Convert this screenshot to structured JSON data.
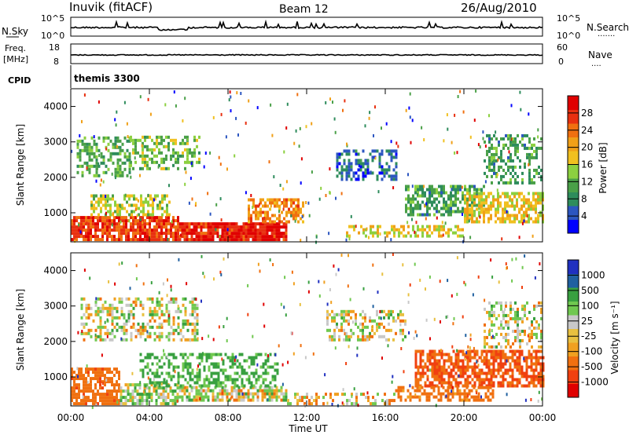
{
  "header": {
    "station": "Inuvik (fitACF)",
    "beam": "Beam 12",
    "date": "26/Aug/2010"
  },
  "noise_panel": {
    "left_label": "N.Sky",
    "right_label": "N.Search",
    "left_ticks": [
      "10^5",
      "10^0"
    ],
    "right_ticks": [
      "10^5",
      "10^0"
    ]
  },
  "freq_panel": {
    "left_label_line1": "Freq.",
    "left_label_line2": "[MHz]",
    "right_label": "Nave",
    "left_ticks": [
      "18",
      "8"
    ],
    "right_ticks": [
      "60",
      "0"
    ]
  },
  "cpid_panel": {
    "label": "CPID",
    "value": "themis 3300"
  },
  "x_axis": {
    "label": "Time UT",
    "ticks": [
      "00:00",
      "04:00",
      "08:00",
      "12:00",
      "16:00",
      "20:00",
      "00:00"
    ]
  },
  "colors": {
    "power": [
      "#0000ff",
      "#2c56c0",
      "#2e8c5c",
      "#4aa048",
      "#8cd040",
      "#f0c020",
      "#f0a018",
      "#f07010",
      "#e83010",
      "#e00000"
    ],
    "velocity": [
      "#e00000",
      "#f04010",
      "#f07010",
      "#f0a020",
      "#e8c040",
      "#c8c8c8",
      "#70c850",
      "#38a040",
      "#2060a0",
      "#2030c0"
    ]
  },
  "chart_data": [
    {
      "type": "heatmap",
      "panel": "power",
      "ylabel": "Slant Range [km]",
      "yticks": [
        "1000",
        "2000",
        "3000",
        "4000"
      ],
      "ylim": [
        180,
        4500
      ],
      "x_ticks": [
        "00:00",
        "04:00",
        "08:00",
        "12:00",
        "16:00",
        "20:00",
        "00:00"
      ],
      "colorbar_label": "Power [dB]",
      "colorbar_ticks": [
        "4",
        "8",
        "12",
        "16",
        "20",
        "24",
        "28"
      ],
      "colorbar_range": [
        0,
        32
      ],
      "regions": [
        {
          "t0": 0.0,
          "t1": 5.5,
          "r0": 200,
          "r1": 900,
          "v": 27,
          "density": 0.85
        },
        {
          "t0": 5.5,
          "t1": 11.0,
          "r0": 200,
          "r1": 700,
          "v": 29,
          "density": 0.9
        },
        {
          "t0": 1.0,
          "t1": 5.0,
          "r0": 900,
          "r1": 1500,
          "v": 15,
          "density": 0.55
        },
        {
          "t0": 0.3,
          "t1": 3.0,
          "r0": 2000,
          "r1": 3100,
          "v": 11,
          "density": 0.5
        },
        {
          "t0": 3.0,
          "t1": 6.5,
          "r0": 2200,
          "r1": 3100,
          "v": 13,
          "density": 0.45
        },
        {
          "t0": 9.0,
          "t1": 11.8,
          "r0": 700,
          "r1": 1400,
          "v": 22,
          "density": 0.6
        },
        {
          "t0": 13.5,
          "t1": 16.5,
          "r0": 1900,
          "r1": 2700,
          "v": 6,
          "density": 0.45
        },
        {
          "t0": 17.0,
          "t1": 21.0,
          "r0": 900,
          "r1": 1700,
          "v": 10,
          "density": 0.6
        },
        {
          "t0": 20.0,
          "t1": 24.0,
          "r0": 700,
          "r1": 1500,
          "v": 18,
          "density": 0.65
        },
        {
          "t0": 21.0,
          "t1": 24.0,
          "r0": 1800,
          "r1": 3200,
          "v": 10,
          "density": 0.4
        },
        {
          "t0": 14.0,
          "t1": 20.0,
          "r0": 300,
          "r1": 600,
          "v": 17,
          "density": 0.45
        }
      ]
    },
    {
      "type": "heatmap",
      "panel": "velocity",
      "ylabel": "Slant Range [km]",
      "yticks": [
        "1000",
        "2000",
        "3000",
        "4000"
      ],
      "ylim": [
        180,
        4500
      ],
      "x_ticks": [
        "00:00",
        "04:00",
        "08:00",
        "12:00",
        "16:00",
        "20:00",
        "00:00"
      ],
      "colorbar_label": "Velocity [m s⁻¹]",
      "colorbar_ticks": [
        "1000",
        "500",
        "100",
        "25",
        "-25",
        "-100",
        "-500",
        "-1000"
      ],
      "colorbar_range": [
        -1500,
        1500
      ],
      "regions": [
        {
          "t0": 0.0,
          "t1": 2.5,
          "r0": 200,
          "r1": 1200,
          "v": -400,
          "density": 0.7
        },
        {
          "t0": 2.5,
          "t1": 5.5,
          "r0": 200,
          "r1": 800,
          "v": 40,
          "density": 0.7
        },
        {
          "t0": 5.5,
          "t1": 11.0,
          "r0": 300,
          "r1": 700,
          "v": 0,
          "density": 0.75
        },
        {
          "t0": 3.5,
          "t1": 10.5,
          "r0": 700,
          "r1": 1600,
          "v": 150,
          "density": 0.45
        },
        {
          "t0": 0.5,
          "t1": 6.5,
          "r0": 2000,
          "r1": 3200,
          "v": 0,
          "density": 0.45
        },
        {
          "t0": 13.0,
          "t1": 17.0,
          "r0": 2000,
          "r1": 2800,
          "v": 0,
          "density": 0.4
        },
        {
          "t0": 17.5,
          "t1": 24.0,
          "r0": 700,
          "r1": 1700,
          "v": -500,
          "density": 0.7
        },
        {
          "t0": 16.5,
          "t1": 21.5,
          "r0": 300,
          "r1": 700,
          "v": -200,
          "density": 0.55
        },
        {
          "t0": 21.0,
          "t1": 24.0,
          "r0": 1800,
          "r1": 3100,
          "v": 0,
          "density": 0.4
        },
        {
          "t0": 11.0,
          "t1": 16.5,
          "r0": 200,
          "r1": 500,
          "v": -60,
          "density": 0.35
        }
      ]
    }
  ]
}
